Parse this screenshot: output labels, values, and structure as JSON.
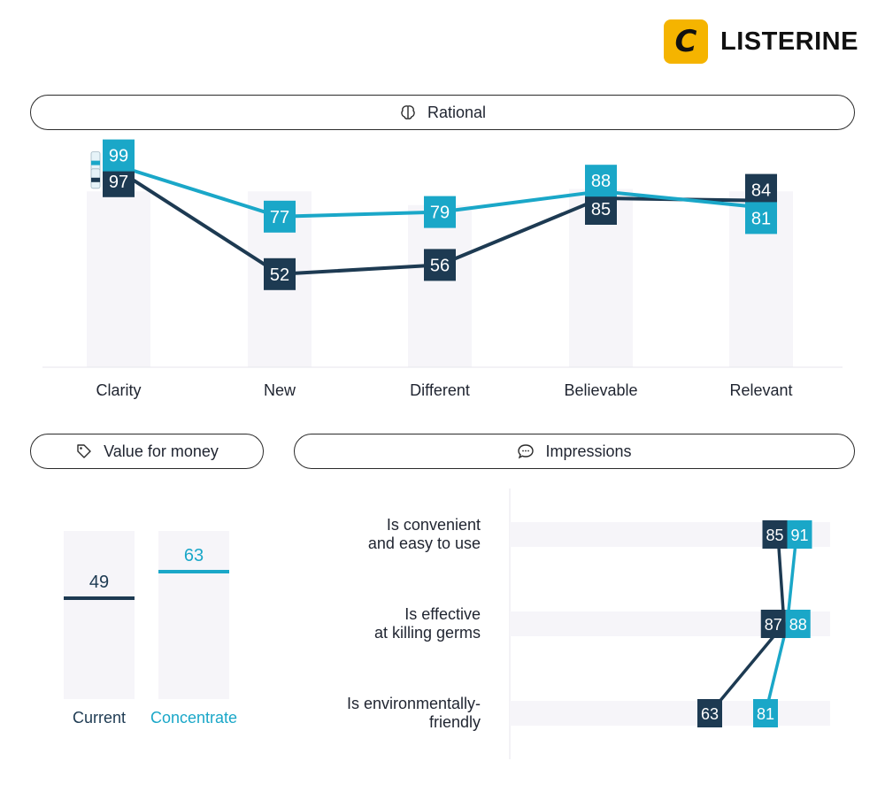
{
  "brand": {
    "logo_letter": "C",
    "name": "LISTERINE",
    "accent": "#f5b400"
  },
  "colors": {
    "current": "#1d3a52",
    "concentrate": "#1aa7c8",
    "bar_bg": "#f6f5f9"
  },
  "sections": {
    "rational": {
      "title": "Rational",
      "icon": "brain-icon"
    },
    "value": {
      "title": "Value for money",
      "icon": "tag-icon"
    },
    "impressions": {
      "title": "Impressions",
      "icon": "speech-bubble-icon"
    }
  },
  "chart_data": [
    {
      "type": "line",
      "title": "Rational",
      "categories": [
        "Clarity",
        "New",
        "Different",
        "Believable",
        "Relevant"
      ],
      "series": [
        {
          "values": [
            97,
            52,
            56,
            85,
            84
          ],
          "color": "#1d3a52"
        },
        {
          "values": [
            99,
            77,
            79,
            88,
            81
          ],
          "color": "#1aa7c8"
        }
      ],
      "background_bar_values": [
        88,
        88,
        82,
        89,
        88
      ],
      "ylim": [
        0,
        100
      ]
    },
    {
      "type": "bar",
      "title": "Value for money",
      "categories": [
        "Current",
        "Concentrate"
      ],
      "values": [
        49,
        63
      ],
      "ylim": [
        0,
        100
      ]
    },
    {
      "type": "line",
      "title": "Impressions",
      "orientation": "horizontal",
      "categories": [
        "Is convenient\nand easy to use",
        "Is effective\nat killing germs",
        "Is environmentally-\nfriendly"
      ],
      "series": [
        {
          "values": [
            85,
            87,
            63
          ],
          "color": "#1d3a52"
        },
        {
          "values": [
            91,
            88,
            81
          ],
          "color": "#1aa7c8"
        }
      ],
      "xlim": [
        0,
        100
      ]
    }
  ]
}
